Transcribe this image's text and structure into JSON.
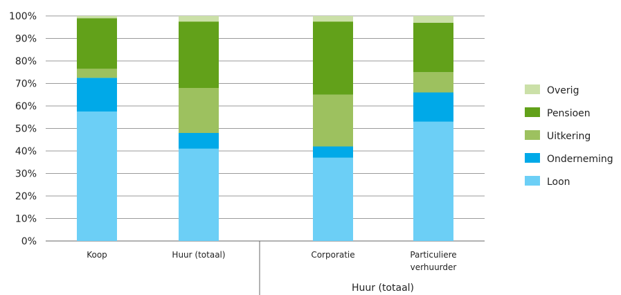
{
  "chart_data": {
    "type": "bar",
    "stacked": true,
    "percent": true,
    "categories": [
      "Koop",
      "Huur (totaal)",
      "Corporatie",
      "Particuliere verhuurder"
    ],
    "category_label_lines": [
      [
        "Koop"
      ],
      [
        "Huur (totaal)"
      ],
      [
        "Corporatie"
      ],
      [
        "Particuliere",
        "verhuurder"
      ]
    ],
    "group_label": "Huur (totaal)",
    "group_members": [
      "Corporatie",
      "Particuliere verhuurder"
    ],
    "series": [
      {
        "name": "Loon",
        "values": [
          57.5,
          41,
          37,
          53
        ],
        "color": "#6ccff6"
      },
      {
        "name": "Onderneming",
        "values": [
          15,
          7,
          5,
          13
        ],
        "color": "#00a9e8"
      },
      {
        "name": "Uitkering",
        "values": [
          4,
          20,
          23,
          9
        ],
        "color": "#9dc15f"
      },
      {
        "name": "Pensioen",
        "values": [
          22.5,
          29.5,
          32.5,
          22
        ],
        "color": "#62a11a"
      },
      {
        "name": "Overig",
        "values": [
          1,
          2.5,
          2.5,
          3
        ],
        "color": "#cbe0a8"
      }
    ],
    "legend_order": [
      "Overig",
      "Pensioen",
      "Uitkering",
      "Onderneming",
      "Loon"
    ],
    "legend_position": "right",
    "ylim": [
      0,
      100
    ],
    "yticks": [
      "0%",
      "10%",
      "20%",
      "30%",
      "40%",
      "50%",
      "60%",
      "70%",
      "80%",
      "90%",
      "100%"
    ],
    "grid": true,
    "title": "",
    "xlabel": "",
    "ylabel": ""
  }
}
